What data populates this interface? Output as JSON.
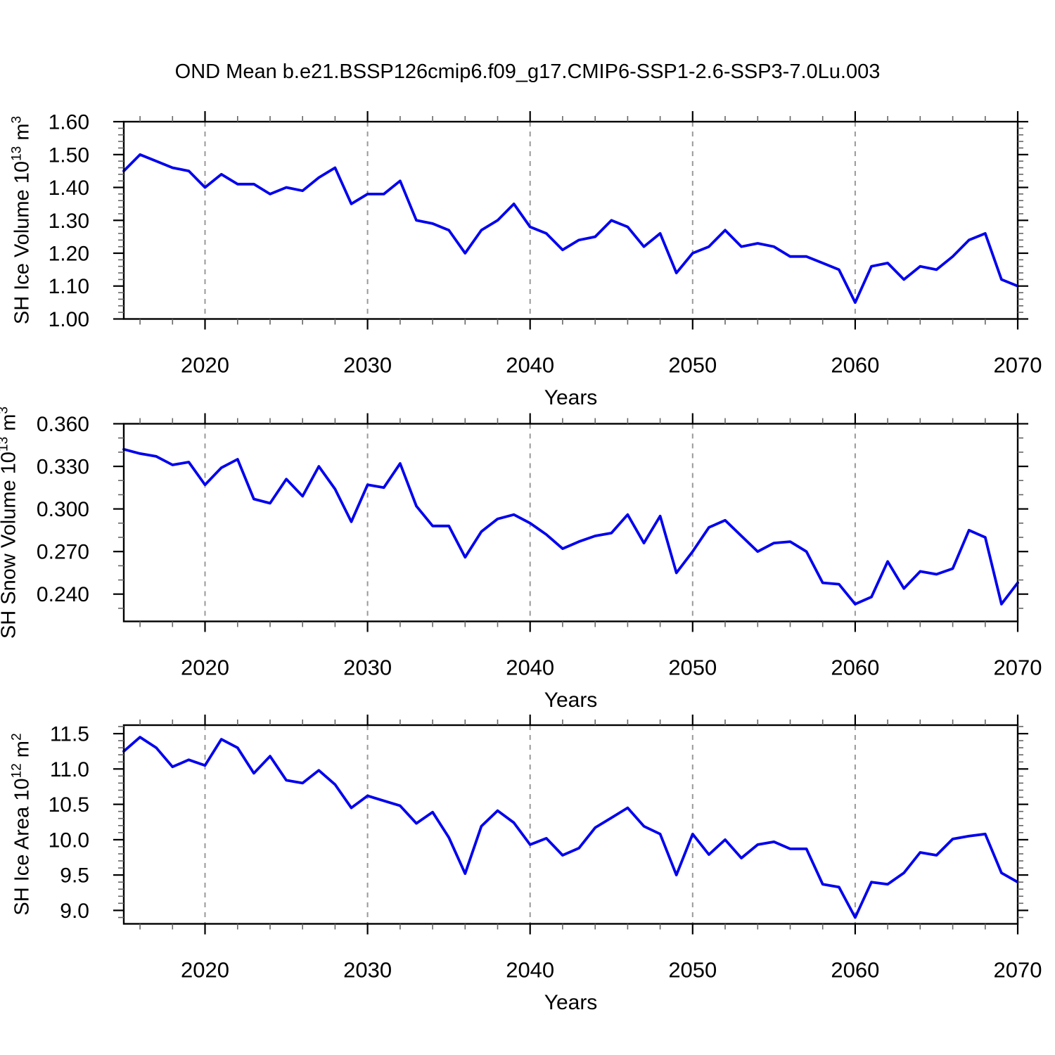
{
  "title": "OND Mean b.e21.BSSP126cmip6.f09_g17.CMIP6-SSP1-2.6-SSP3-7.0Lu.003",
  "xlabel": "Years",
  "colors": {
    "line": "#0000EE",
    "grid": "#999999",
    "axis": "#000000",
    "minor_tick": "#666666",
    "background": "#ffffff"
  },
  "years": [
    2015,
    2016,
    2017,
    2018,
    2019,
    2020,
    2021,
    2022,
    2023,
    2024,
    2025,
    2026,
    2027,
    2028,
    2029,
    2030,
    2031,
    2032,
    2033,
    2034,
    2035,
    2036,
    2037,
    2038,
    2039,
    2040,
    2041,
    2042,
    2043,
    2044,
    2045,
    2046,
    2047,
    2048,
    2049,
    2050,
    2051,
    2052,
    2053,
    2054,
    2055,
    2056,
    2057,
    2058,
    2059,
    2060,
    2061,
    2062,
    2063,
    2064,
    2065,
    2066,
    2067,
    2068,
    2069,
    2070
  ],
  "xticks": {
    "major": [
      2020,
      2030,
      2040,
      2050,
      2060,
      2070
    ],
    "labels": [
      "2020",
      "2030",
      "2040",
      "2050",
      "2060",
      "2070"
    ],
    "minor_step": 2,
    "grid": [
      2020,
      2030,
      2040,
      2050,
      2060
    ],
    "xlim": [
      2015,
      2070
    ]
  },
  "chart_data": [
    {
      "type": "line",
      "name": "sh-ice-volume",
      "ylabel": {
        "prefix": "SH Ice Volume 10",
        "exp": "13",
        "unit": " m",
        "unit_exp": "3"
      },
      "ylim": [
        1.0,
        1.6
      ],
      "yticks": {
        "major": [
          1.0,
          1.1,
          1.2,
          1.3,
          1.4,
          1.5,
          1.6
        ],
        "labels": [
          "1.00",
          "1.10",
          "1.20",
          "1.30",
          "1.40",
          "1.50",
          "1.60"
        ],
        "minor_step": 0.02
      },
      "values": [
        1.45,
        1.5,
        1.48,
        1.46,
        1.45,
        1.4,
        1.44,
        1.41,
        1.41,
        1.38,
        1.4,
        1.39,
        1.43,
        1.46,
        1.35,
        1.38,
        1.38,
        1.42,
        1.3,
        1.29,
        1.27,
        1.2,
        1.27,
        1.3,
        1.35,
        1.28,
        1.26,
        1.21,
        1.24,
        1.25,
        1.3,
        1.28,
        1.22,
        1.26,
        1.14,
        1.2,
        1.22,
        1.27,
        1.22,
        1.23,
        1.22,
        1.19,
        1.19,
        1.17,
        1.15,
        1.05,
        1.16,
        1.17,
        1.12,
        1.16,
        1.15,
        1.19,
        1.24,
        1.26,
        1.12,
        1.1
      ]
    },
    {
      "type": "line",
      "name": "sh-snow-volume",
      "ylabel": {
        "prefix": "SH Snow Volume 10",
        "exp": "13",
        "unit": " m",
        "unit_exp": "3"
      },
      "ylim": [
        0.2208,
        0.36
      ],
      "yticks": {
        "major": [
          0.24,
          0.27,
          0.3,
          0.33,
          0.36
        ],
        "labels": [
          "0.240",
          "0.270",
          "0.300",
          "0.330",
          "0.360"
        ],
        "minor_step": 0.01
      },
      "values": [
        0.342,
        0.339,
        0.337,
        0.331,
        0.333,
        0.317,
        0.329,
        0.335,
        0.307,
        0.304,
        0.321,
        0.309,
        0.33,
        0.314,
        0.291,
        0.317,
        0.315,
        0.332,
        0.302,
        0.288,
        0.288,
        0.266,
        0.284,
        0.293,
        0.296,
        0.29,
        0.282,
        0.272,
        0.277,
        0.281,
        0.283,
        0.296,
        0.276,
        0.295,
        0.255,
        0.27,
        0.287,
        0.292,
        0.281,
        0.27,
        0.276,
        0.277,
        0.27,
        0.248,
        0.247,
        0.233,
        0.238,
        0.263,
        0.244,
        0.256,
        0.254,
        0.258,
        0.285,
        0.28,
        0.233,
        0.248
      ]
    },
    {
      "type": "line",
      "name": "sh-ice-area",
      "ylabel": {
        "prefix": "SH Ice Area 10",
        "exp": "12",
        "unit": " m",
        "unit_exp": "2"
      },
      "ylim": [
        8.81,
        11.62
      ],
      "yticks": {
        "major": [
          9.0,
          9.5,
          10.0,
          10.5,
          11.0,
          11.5
        ],
        "labels": [
          "9.0",
          "9.5",
          "10.0",
          "10.5",
          "11.0",
          "11.5"
        ],
        "minor_step": 0.1
      },
      "values": [
        11.25,
        11.45,
        11.3,
        11.03,
        11.13,
        11.05,
        11.42,
        11.3,
        10.94,
        11.18,
        10.84,
        10.8,
        10.98,
        10.78,
        10.45,
        10.62,
        10.55,
        10.48,
        10.23,
        10.39,
        10.03,
        9.52,
        10.19,
        10.41,
        10.24,
        9.93,
        10.02,
        9.78,
        9.88,
        10.17,
        10.31,
        10.45,
        10.19,
        10.08,
        9.5,
        10.08,
        9.79,
        10.0,
        9.74,
        9.93,
        9.97,
        9.87,
        9.87,
        9.37,
        9.33,
        8.9,
        9.4,
        9.37,
        9.53,
        9.82,
        9.78,
        10.01,
        10.05,
        10.08,
        9.53,
        9.4
      ]
    }
  ]
}
